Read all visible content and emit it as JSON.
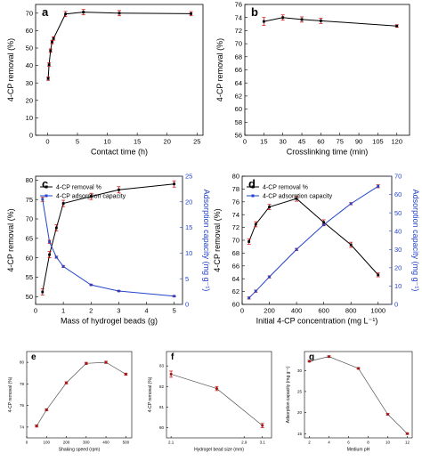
{
  "chart_data": [
    {
      "panel": "a",
      "type": "line",
      "xlabel": "Contact time (h)",
      "ylabel": "4-CP removal (%)",
      "xlim": [
        -2,
        26
      ],
      "ylim": [
        0,
        75
      ],
      "xticks": [
        0,
        5,
        10,
        15,
        20,
        25
      ],
      "yticks": [
        0,
        10,
        20,
        30,
        40,
        50,
        60,
        70
      ],
      "series": [
        {
          "color": "#000000",
          "marker": "square",
          "errorbars": true,
          "x": [
            0.1,
            0.25,
            0.5,
            0.75,
            1,
            3,
            6,
            12,
            24
          ],
          "y": [
            32.5,
            40.5,
            48.5,
            53.5,
            55.5,
            69.5,
            70.6,
            70.0,
            69.7
          ],
          "err": [
            1.0,
            1.0,
            1.0,
            1.0,
            1.0,
            1.5,
            1.5,
            1.5,
            1.2
          ]
        }
      ]
    },
    {
      "panel": "b",
      "type": "line",
      "xlabel": "Crosslinking time (min)",
      "ylabel": "4-CP removal (%)",
      "xlim": [
        0,
        130
      ],
      "ylim": [
        56,
        76
      ],
      "xticks": [
        0,
        15,
        30,
        45,
        60,
        75,
        90,
        105,
        120
      ],
      "yticks": [
        56,
        58,
        60,
        62,
        64,
        66,
        68,
        70,
        72,
        74,
        76
      ],
      "series": [
        {
          "color": "#000000",
          "marker": "square",
          "errorbars": true,
          "x": [
            15,
            30,
            45,
            60,
            120
          ],
          "y": [
            73.4,
            74.0,
            73.7,
            73.5,
            72.7
          ],
          "err": [
            0.6,
            0.4,
            0.4,
            0.4,
            0.2
          ]
        }
      ]
    },
    {
      "panel": "c",
      "type": "line",
      "dual_axis": true,
      "xlabel": "Mass of hydrogel beads (g)",
      "ylabel": "4-CP removal (%)",
      "ylabel_right": "Adsorption capacity (mg g⁻¹)",
      "xlim": [
        0,
        5.3
      ],
      "ylim": [
        48,
        81
      ],
      "ylim_right": [
        0,
        25
      ],
      "xticks": [
        0,
        1,
        2,
        3,
        4,
        5
      ],
      "yticks": [
        50,
        55,
        60,
        65,
        70,
        75,
        80
      ],
      "yticks_right": [
        0,
        5,
        10,
        15,
        20,
        25
      ],
      "legend": "top-left",
      "series": [
        {
          "name": "4-CP removal %",
          "axis": "left",
          "color": "#000000",
          "marker": "square",
          "errorbars": true,
          "x": [
            0.25,
            0.5,
            0.75,
            1,
            2,
            3,
            5
          ],
          "y": [
            51.2,
            60.8,
            67.7,
            74.0,
            75.8,
            77.5,
            79.0
          ],
          "err": [
            0.8,
            0.8,
            0.8,
            0.8,
            0.8,
            0.8,
            0.8
          ]
        },
        {
          "name": "4-CP adsorption capacity",
          "axis": "right",
          "color": "#2244cc",
          "marker": "square",
          "errorbars": true,
          "x": [
            0.25,
            0.5,
            0.75,
            1,
            2,
            3,
            5
          ],
          "y": [
            20.5,
            12.2,
            9.2,
            7.4,
            3.8,
            2.6,
            1.6
          ],
          "err": [
            0.4,
            0.3,
            0.2,
            0.2,
            0.1,
            0.1,
            0.1
          ]
        }
      ]
    },
    {
      "panel": "d",
      "type": "line",
      "dual_axis": true,
      "xlabel": "Initial 4-CP concentration (mg L⁻¹)",
      "ylabel": "4-CP removal (%)",
      "ylabel_right": "Adsorption capacity (mg g⁻¹)",
      "xlim": [
        0,
        1100
      ],
      "ylim": [
        60,
        80
      ],
      "ylim_right": [
        0,
        70
      ],
      "xticks": [
        0,
        200,
        400,
        600,
        800,
        1000
      ],
      "yticks": [
        60,
        62,
        64,
        66,
        68,
        70,
        72,
        74,
        76,
        78,
        80
      ],
      "yticks_right": [
        0,
        10,
        20,
        30,
        40,
        50,
        60,
        70
      ],
      "legend": "top-left",
      "series": [
        {
          "name": "4-CP removal %",
          "axis": "left",
          "color": "#000000",
          "marker": "square",
          "errorbars": true,
          "x": [
            50,
            100,
            200,
            400,
            600,
            800,
            1000
          ],
          "y": [
            69.8,
            72.5,
            75.2,
            76.5,
            72.8,
            69.3,
            64.6
          ],
          "err": [
            0.4,
            0.4,
            0.4,
            0.4,
            0.4,
            0.4,
            0.3
          ]
        },
        {
          "name": "4-CP adsorption capacity",
          "axis": "right",
          "color": "#2244cc",
          "marker": "square",
          "errorbars": true,
          "x": [
            50,
            100,
            200,
            400,
            600,
            800,
            1000
          ],
          "y": [
            3.5,
            7.2,
            15.0,
            30.0,
            43.5,
            55.0,
            64.5
          ],
          "err": [
            0.6,
            0.6,
            0.6,
            0.6,
            0.6,
            0.6,
            0.8
          ]
        }
      ]
    },
    {
      "panel": "e",
      "type": "line",
      "xlabel": "Shaking speed (rpm)",
      "ylabel": "4-CP removal (%)",
      "xlim": [
        0,
        530
      ],
      "ylim": [
        73,
        81
      ],
      "xticks": [
        0,
        100,
        200,
        300,
        400,
        500
      ],
      "yticks": [
        74,
        76,
        78,
        80
      ],
      "series": [
        {
          "color": "#555555",
          "marker": "circle",
          "errorbars": true,
          "x": [
            50,
            100,
            200,
            300,
            400,
            500
          ],
          "y": [
            74.1,
            75.6,
            78.1,
            79.9,
            80.0,
            78.9
          ],
          "err": [
            0.1,
            0.1,
            0.1,
            0.1,
            0.1,
            0.1
          ]
        }
      ]
    },
    {
      "panel": "f",
      "type": "line",
      "xlabel": "Hydrogel bead size (mm)",
      "ylabel": "4-CP removal (%)",
      "xlim": [
        2.05,
        3.2
      ],
      "ylim": [
        79.5,
        83.7
      ],
      "xticks": [
        2.1,
        2.9,
        3.1
      ],
      "xticklabels": [
        "2.1",
        "2.9",
        "3.1"
      ],
      "yticks": [
        80,
        81,
        82,
        83
      ],
      "series": [
        {
          "color": "#555555",
          "marker": "circle",
          "errorbars": true,
          "x": [
            2.1,
            2.6,
            3.1
          ],
          "y": [
            82.6,
            81.9,
            80.1
          ],
          "err": [
            0.15,
            0.1,
            0.1
          ]
        }
      ]
    },
    {
      "panel": "g",
      "type": "line",
      "xlabel": "Medium pH",
      "ylabel": "Adsorption capacity (mg g⁻¹)",
      "xlim": [
        1.5,
        12.5
      ],
      "ylim": [
        14,
        34.5
      ],
      "xticks": [
        2,
        4,
        6,
        8,
        10,
        12
      ],
      "yticks": [
        15,
        20,
        25,
        30
      ],
      "series": [
        {
          "color": "#555555",
          "marker": "circle",
          "errorbars": true,
          "x": [
            2,
            4,
            7,
            10,
            12
          ],
          "y": [
            32.2,
            33.3,
            30.5,
            19.6,
            15.0
          ],
          "err": [
            0.2,
            0.2,
            0.2,
            0.2,
            0.2
          ]
        }
      ]
    }
  ]
}
